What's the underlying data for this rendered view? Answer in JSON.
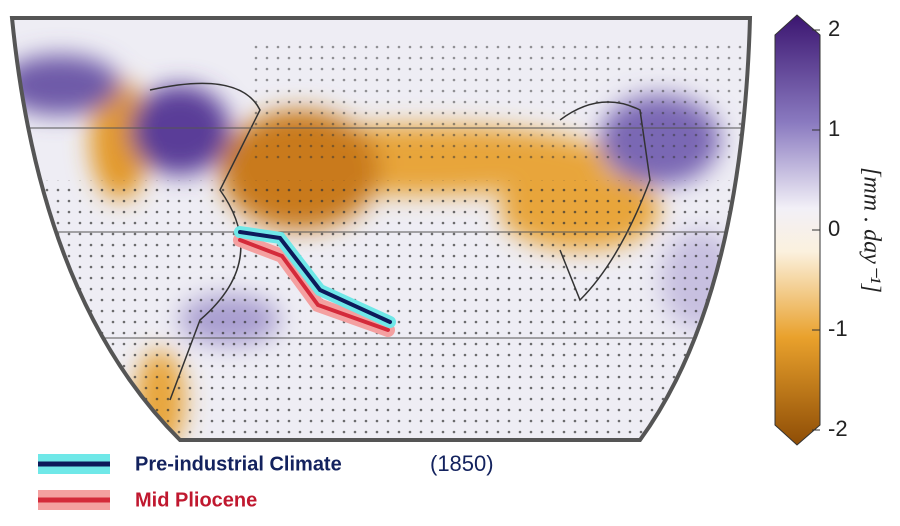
{
  "colorbar": {
    "label": "[mm . day⁻¹]",
    "lim": [
      -2,
      2
    ],
    "ticks": [
      2,
      1,
      0,
      -1,
      -2
    ]
  },
  "legend": [
    {
      "label": "Pre-industrial Climate",
      "note": "(1850)"
    },
    {
      "label": "Mid Pliocene"
    }
  ]
}
